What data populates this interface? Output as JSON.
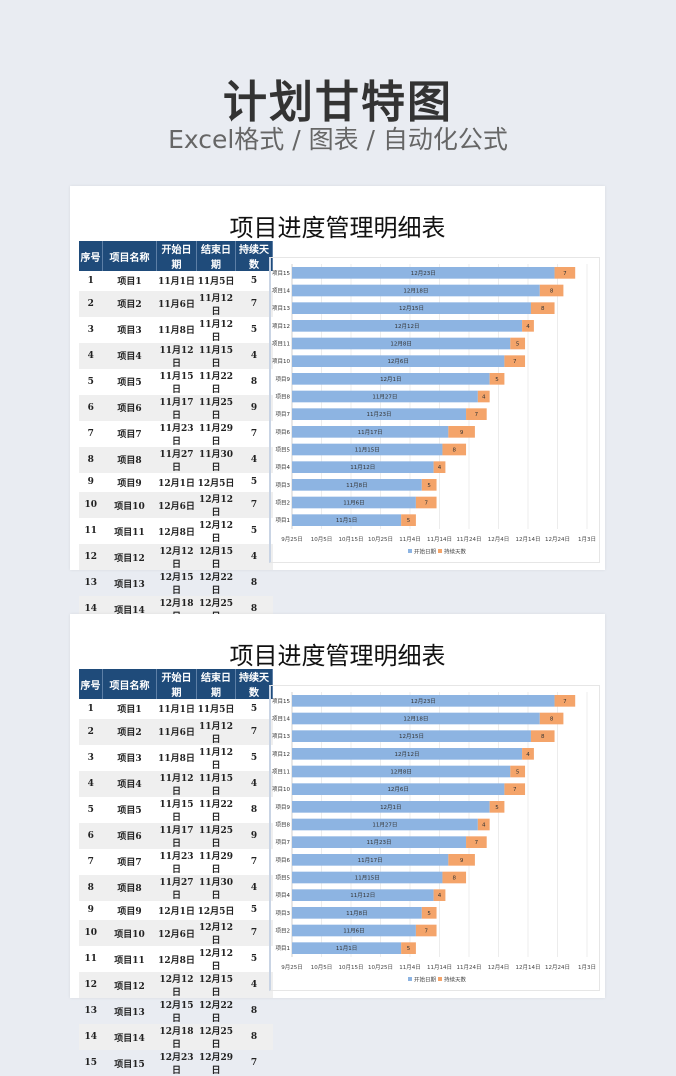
{
  "hero": {
    "title": "计划甘特图",
    "subtitle": "Excel格式 / 图表 / 自动化公式"
  },
  "sheet": {
    "title": "项目进度管理明细表",
    "columns": [
      "序号",
      "项目名称",
      "开始日期",
      "结束日期",
      "持续天数"
    ],
    "rows": [
      [
        "1",
        "项目1",
        "11月1日",
        "11月5日",
        "5"
      ],
      [
        "2",
        "项目2",
        "11月6日",
        "11月12日",
        "7"
      ],
      [
        "3",
        "项目3",
        "11月8日",
        "11月12日",
        "5"
      ],
      [
        "4",
        "项目4",
        "11月12日",
        "11月15日",
        "4"
      ],
      [
        "5",
        "项目5",
        "11月15日",
        "11月22日",
        "8"
      ],
      [
        "6",
        "项目6",
        "11月17日",
        "11月25日",
        "9"
      ],
      [
        "7",
        "项目7",
        "11月23日",
        "11月29日",
        "7"
      ],
      [
        "8",
        "项目8",
        "11月27日",
        "11月30日",
        "4"
      ],
      [
        "9",
        "项目9",
        "12月1日",
        "12月5日",
        "5"
      ],
      [
        "10",
        "项目10",
        "12月6日",
        "12月12日",
        "7"
      ],
      [
        "11",
        "项目11",
        "12月8日",
        "12月12日",
        "5"
      ],
      [
        "12",
        "项目12",
        "12月12日",
        "12月15日",
        "4"
      ],
      [
        "13",
        "项目13",
        "12月15日",
        "12月22日",
        "8"
      ],
      [
        "14",
        "项目14",
        "12月18日",
        "12月25日",
        "8"
      ],
      [
        "15",
        "项目15",
        "12月23日",
        "12月29日",
        "7"
      ]
    ]
  },
  "chart_data": {
    "type": "bar",
    "orientation": "horizontal-stacked",
    "categories": [
      "项目1",
      "项目2",
      "项目3",
      "项目4",
      "项目5",
      "项目6",
      "项目7",
      "项目8",
      "项目9",
      "项目10",
      "项目11",
      "项目12",
      "项目13",
      "项目14",
      "项目15"
    ],
    "series": [
      {
        "name": "开始日期",
        "color": "#8db4e2",
        "values": [
          "11月1日",
          "11月6日",
          "11月8日",
          "11月12日",
          "11月15日",
          "11月17日",
          "11月23日",
          "11月27日",
          "12月1日",
          "12月6日",
          "12月8日",
          "12月12日",
          "12月15日",
          "12月18日",
          "12月23日"
        ]
      },
      {
        "name": "持续天数",
        "color": "#f4a46a",
        "values": [
          5,
          7,
          5,
          4,
          8,
          9,
          7,
          4,
          5,
          7,
          5,
          4,
          8,
          8,
          7
        ]
      }
    ],
    "x_ticks": [
      "9月25日",
      "10月5日",
      "10月15日",
      "10月25日",
      "11月4日",
      "11月14日",
      "11月24日",
      "12月4日",
      "12月14日",
      "12月24日",
      "1月3日"
    ],
    "xlim": [
      "9月25日",
      "1月3日"
    ],
    "legend": "bottom",
    "grid": true
  }
}
